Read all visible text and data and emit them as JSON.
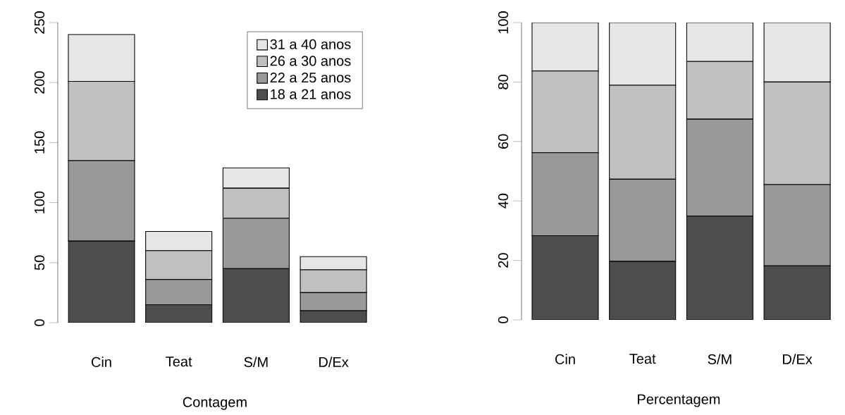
{
  "chart_data": [
    {
      "type": "bar",
      "stacked": true,
      "xlabel": "Contagem",
      "categories": [
        "Cin",
        "Teat",
        "S/M",
        "D/Ex"
      ],
      "ylim": [
        0,
        250
      ],
      "yticks": [
        0,
        50,
        100,
        150,
        200,
        250
      ],
      "legend": "top right",
      "series": [
        {
          "name": "18 a 21 anos",
          "color": "#4d4d4d",
          "values": [
            68,
            15,
            45,
            10
          ]
        },
        {
          "name": "22 a 25 anos",
          "color": "#999999",
          "values": [
            67,
            21,
            42,
            15
          ]
        },
        {
          "name": "26 a 30 anos",
          "color": "#c0c0c0",
          "values": [
            66,
            24,
            25,
            19
          ]
        },
        {
          "name": "31 a 40 anos",
          "color": "#e6e6e6",
          "values": [
            39,
            16,
            17,
            11
          ]
        }
      ]
    },
    {
      "type": "bar",
      "stacked": true,
      "xlabel": "Percentagem",
      "categories": [
        "Cin",
        "Teat",
        "S/M",
        "D/Ex"
      ],
      "ylim": [
        0,
        100
      ],
      "yticks": [
        0,
        20,
        40,
        60,
        80,
        100
      ],
      "series": [
        {
          "color": "#4d4d4d",
          "values": [
            28.3,
            19.7,
            34.9,
            18.2
          ]
        },
        {
          "color": "#999999",
          "values": [
            27.9,
            27.6,
            32.6,
            27.3
          ]
        },
        {
          "color": "#c0c0c0",
          "values": [
            27.5,
            31.6,
            19.4,
            34.5
          ]
        },
        {
          "color": "#e6e6e6",
          "values": [
            16.3,
            21.1,
            13.1,
            20.0
          ]
        }
      ]
    }
  ]
}
